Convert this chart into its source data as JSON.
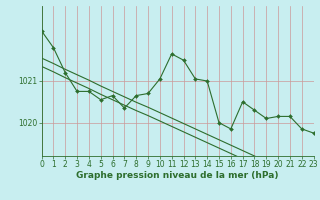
{
  "title": "Graphe pression niveau de la mer (hPa)",
  "bg_color": "#c8eef0",
  "line_color": "#2d6e2d",
  "grid_color_v": "#cc9999",
  "grid_color_h": "#cc9999",
  "x": [
    0,
    1,
    2,
    3,
    4,
    5,
    6,
    7,
    8,
    9,
    10,
    11,
    12,
    13,
    14,
    15,
    16,
    17,
    18,
    19,
    20,
    21,
    22,
    23
  ],
  "y_main": [
    1022.2,
    1021.8,
    1021.2,
    1020.75,
    1020.75,
    1020.55,
    1020.65,
    1020.35,
    1020.65,
    1020.7,
    1021.05,
    1021.65,
    1021.5,
    1021.05,
    1021.0,
    1020.0,
    1019.85,
    1020.5,
    1020.3,
    1020.1,
    1020.15,
    1020.15,
    1019.85,
    1019.75
  ],
  "y_upper": [
    1021.55,
    1021.42,
    1021.28,
    1021.15,
    1021.02,
    1020.88,
    1020.75,
    1020.62,
    1020.49,
    1020.37,
    1020.24,
    1020.11,
    1019.98,
    1019.85,
    1019.72,
    1019.59,
    1019.46,
    1019.33,
    1019.2,
    1019.07,
    1018.94,
    1018.81,
    1018.68,
    1018.55
  ],
  "y_lower": [
    1021.35,
    1021.22,
    1021.08,
    1020.95,
    1020.82,
    1020.68,
    1020.55,
    1020.42,
    1020.29,
    1020.17,
    1020.04,
    1019.91,
    1019.78,
    1019.65,
    1019.52,
    1019.39,
    1019.26,
    1019.13,
    1019.0,
    1018.87,
    1018.74,
    1018.61,
    1018.48,
    1018.35
  ],
  "yticks": [
    1020,
    1021
  ],
  "ylim": [
    1019.2,
    1022.8
  ],
  "xlim": [
    0,
    23
  ],
  "title_fontsize": 6.5,
  "tick_fontsize": 5.5
}
